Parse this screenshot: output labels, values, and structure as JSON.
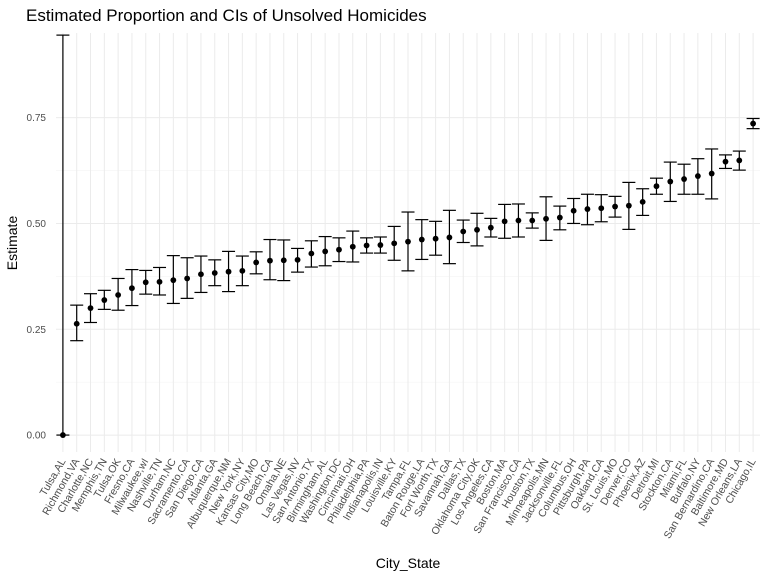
{
  "chart_data": {
    "type": "scatter",
    "title": "Estimated Proportion and CIs of Unsolved Homicides",
    "xlabel": "City_State",
    "ylabel": "Estimate",
    "ylim": [
      -0.04,
      0.95
    ],
    "yticks": [
      0.0,
      0.25,
      0.5,
      0.75
    ],
    "ytick_labels": [
      "0.00",
      "0.25",
      "0.50",
      "0.75"
    ],
    "grid": true,
    "categories": [
      "Tulsa,AL",
      "Richmond,VA",
      "Charlotte,NC",
      "Memphis,TN",
      "Tulsa,OK",
      "Fresno,CA",
      "Milwaukee,wI",
      "Nashville,TN",
      "Durham,NC",
      "Sacramento,CA",
      "San Diego,CA",
      "Atlanta,GA",
      "Albuquerque,NM",
      "New York,NY",
      "Kansas City,MO",
      "Long Beach,CA",
      "Omaha,NE",
      "Las Vegas,NV",
      "San Antonio,TX",
      "Birmingham,AL",
      "Washington,DC",
      "Cincinnati,OH",
      "Philadelphia,PA",
      "Indianapolis,IN",
      "Louisville,KY",
      "Tampa,FL",
      "Baton Rouge,LA",
      "Fort Worth,TX",
      "Savannah,GA",
      "Dallas,TX",
      "Oklahoma City,OK",
      "Los Angeles,CA",
      "Boston,MA",
      "San Francisco,CA",
      "Houston,TX",
      "Minneapolis,MN",
      "Jacksonville,FL",
      "Columbus,OH",
      "Pittsburgh,PA",
      "Oakland,CA",
      "St. Louis,MO",
      "Denver,CO",
      "Phoenix,AZ",
      "Detroit,MI",
      "Stockton,CA",
      "Miami,FL",
      "Buffalo,NY",
      "San Bernardino,CA",
      "Baltimore,MD",
      "New Orleans,LA",
      "Chicago,IL"
    ],
    "estimate": [
      0.0,
      0.263,
      0.3,
      0.319,
      0.331,
      0.347,
      0.361,
      0.362,
      0.366,
      0.37,
      0.38,
      0.383,
      0.386,
      0.388,
      0.408,
      0.412,
      0.413,
      0.414,
      0.429,
      0.434,
      0.438,
      0.445,
      0.448,
      0.449,
      0.453,
      0.457,
      0.462,
      0.464,
      0.467,
      0.481,
      0.485,
      0.49,
      0.505,
      0.507,
      0.507,
      0.511,
      0.514,
      0.53,
      0.534,
      0.536,
      0.54,
      0.542,
      0.551,
      0.588,
      0.599,
      0.605,
      0.612,
      0.618,
      0.646,
      0.649,
      0.736
    ],
    "ci_low": [
      0.0,
      0.223,
      0.266,
      0.297,
      0.295,
      0.306,
      0.333,
      0.331,
      0.311,
      0.323,
      0.337,
      0.353,
      0.339,
      0.353,
      0.381,
      0.367,
      0.365,
      0.385,
      0.397,
      0.4,
      0.41,
      0.409,
      0.43,
      0.43,
      0.413,
      0.388,
      0.415,
      0.425,
      0.405,
      0.455,
      0.447,
      0.468,
      0.465,
      0.468,
      0.489,
      0.46,
      0.485,
      0.5,
      0.497,
      0.504,
      0.515,
      0.486,
      0.519,
      0.569,
      0.552,
      0.569,
      0.569,
      0.558,
      0.63,
      0.626,
      0.724
    ],
    "ci_high": [
      0.945,
      0.307,
      0.334,
      0.342,
      0.37,
      0.391,
      0.389,
      0.396,
      0.424,
      0.419,
      0.423,
      0.414,
      0.434,
      0.423,
      0.433,
      0.462,
      0.461,
      0.441,
      0.459,
      0.469,
      0.466,
      0.482,
      0.466,
      0.468,
      0.493,
      0.527,
      0.509,
      0.505,
      0.531,
      0.508,
      0.524,
      0.512,
      0.545,
      0.546,
      0.525,
      0.563,
      0.541,
      0.559,
      0.569,
      0.568,
      0.564,
      0.597,
      0.582,
      0.607,
      0.645,
      0.64,
      0.653,
      0.676,
      0.662,
      0.671,
      0.748
    ]
  }
}
